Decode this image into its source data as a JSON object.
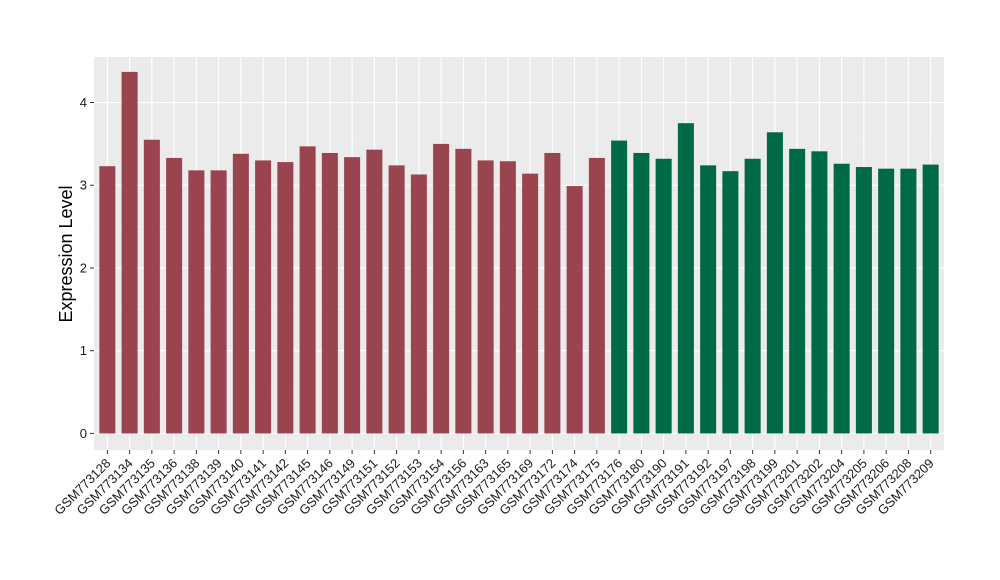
{
  "chart_data": {
    "type": "bar",
    "title": "",
    "xlabel": "",
    "ylabel": "Expression Level",
    "ylim": [
      -0.2,
      4.55
    ],
    "yticks": [
      0,
      1,
      2,
      3,
      4
    ],
    "grid": true,
    "background": "#EBEBEB",
    "categories": [
      "GSM773128",
      "GSM773134",
      "GSM773135",
      "GSM773136",
      "GSM773138",
      "GSM773139",
      "GSM773140",
      "GSM773141",
      "GSM773142",
      "GSM773145",
      "GSM773146",
      "GSM773149",
      "GSM773151",
      "GSM773152",
      "GSM773153",
      "GSM773154",
      "GSM773156",
      "GSM773163",
      "GSM773165",
      "GSM773169",
      "GSM773172",
      "GSM773174",
      "GSM773175",
      "GSM773176",
      "GSM773180",
      "GSM773190",
      "GSM773191",
      "GSM773192",
      "GSM773197",
      "GSM773198",
      "GSM773199",
      "GSM773201",
      "GSM773202",
      "GSM773204",
      "GSM773205",
      "GSM773206",
      "GSM773208",
      "GSM773209"
    ],
    "values": [
      3.23,
      4.37,
      3.55,
      3.33,
      3.18,
      3.18,
      3.38,
      3.3,
      3.28,
      3.47,
      3.39,
      3.34,
      3.43,
      3.24,
      3.13,
      3.5,
      3.44,
      3.3,
      3.29,
      3.14,
      3.39,
      2.99,
      3.33,
      3.54,
      3.39,
      3.32,
      3.75,
      3.24,
      3.17,
      3.32,
      3.64,
      3.44,
      3.41,
      3.26,
      3.22,
      3.2,
      3.2,
      3.25
    ],
    "groups": [
      "red",
      "red",
      "red",
      "red",
      "red",
      "red",
      "red",
      "red",
      "red",
      "red",
      "red",
      "red",
      "red",
      "red",
      "red",
      "red",
      "red",
      "red",
      "red",
      "red",
      "red",
      "red",
      "red",
      "green",
      "green",
      "green",
      "green",
      "green",
      "green",
      "green",
      "green",
      "green",
      "green",
      "green",
      "green",
      "green",
      "green",
      "green"
    ],
    "colors": {
      "red": "#9A4450",
      "green": "#006945"
    }
  }
}
